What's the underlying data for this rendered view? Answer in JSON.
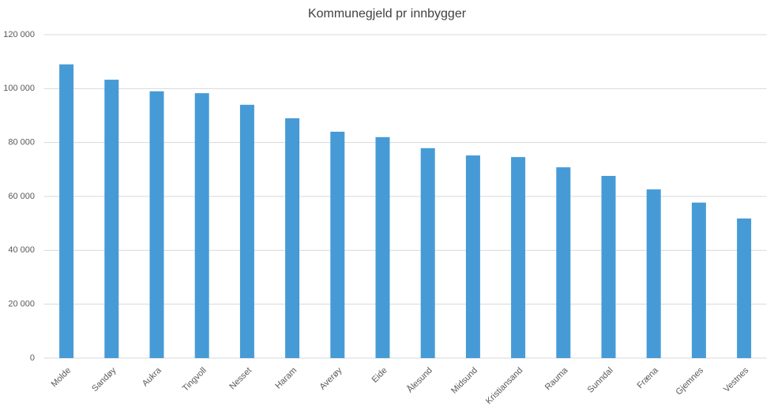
{
  "chart_data": {
    "type": "bar",
    "title": "Kommunegjeld pr innbygger",
    "categories": [
      "Molde",
      "Sandøy",
      "Aukra",
      "Tingvoll",
      "Nesset",
      "Haram",
      "Averøy",
      "Eide",
      "Ålesund",
      "Midsund",
      "Kristiansand",
      "Rauma",
      "Sunndal",
      "Fræna",
      "Gjemnes",
      "Vestnes"
    ],
    "values": [
      109000,
      103300,
      99000,
      98300,
      94000,
      89000,
      84000,
      82000,
      77900,
      75200,
      74600,
      70800,
      67600,
      62600,
      57700,
      51800
    ],
    "color": "#469bd6",
    "ylim": [
      0,
      120000
    ],
    "yticks": [
      {
        "value": 0,
        "label": "0"
      },
      {
        "value": 20000,
        "label": "20 000"
      },
      {
        "value": 40000,
        "label": "40 000"
      },
      {
        "value": 60000,
        "label": "60 000"
      },
      {
        "value": 80000,
        "label": "80 000"
      },
      {
        "value": 100000,
        "label": "100 000"
      },
      {
        "value": 120000,
        "label": "120 000"
      }
    ],
    "grid": true
  }
}
